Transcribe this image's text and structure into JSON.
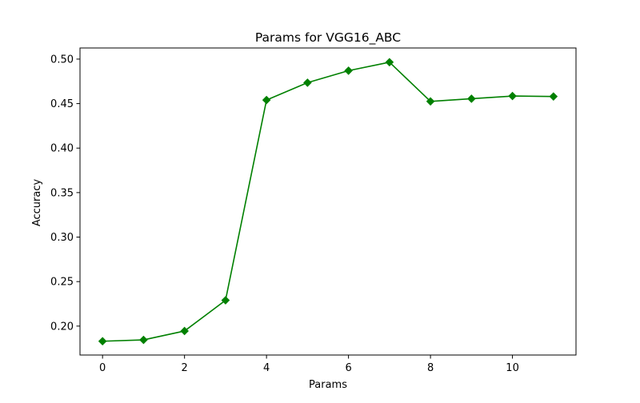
{
  "chart_data": {
    "type": "line",
    "title": "Params for VGG16_ABC",
    "xlabel": "Params",
    "ylabel": "Accuracy",
    "xlim": [
      -0.55,
      11.55
    ],
    "ylim": [
      0.1675,
      0.5125
    ],
    "xticks": [
      0,
      2,
      4,
      6,
      8,
      10
    ],
    "yticks": [
      0.2,
      0.25,
      0.3,
      0.35,
      0.4,
      0.45,
      0.5
    ],
    "xtick_labels": [
      "0",
      "2",
      "4",
      "6",
      "8",
      "10"
    ],
    "ytick_labels": [
      "0.20",
      "0.25",
      "0.30",
      "0.35",
      "0.40",
      "0.45",
      "0.50"
    ],
    "grid": false,
    "series": [
      {
        "color": "#008000",
        "marker": "diamond",
        "x": [
          0,
          1,
          2,
          3,
          4,
          5,
          6,
          7,
          8,
          9,
          10,
          11
        ],
        "y": [
          0.183,
          0.1845,
          0.1945,
          0.229,
          0.454,
          0.4735,
          0.487,
          0.4965,
          0.4525,
          0.4555,
          0.4585,
          0.458
        ]
      }
    ]
  }
}
